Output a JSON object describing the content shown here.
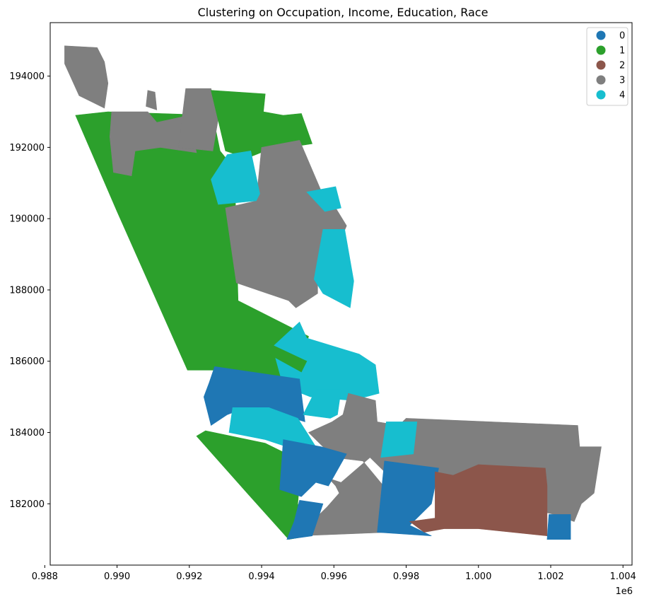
{
  "chart_data": {
    "type": "map",
    "title": "Clustering on Occupation, Income, Education, Race",
    "xlim": [
      988150,
      1004250
    ],
    "ylim": [
      180280,
      195500
    ],
    "x_tick_labels": [
      "0.988",
      "0.990",
      "0.992",
      "0.994",
      "0.996",
      "0.998",
      "1.000",
      "1.002",
      "1.004"
    ],
    "y_tick_labels": [
      "182000",
      "184000",
      "186000",
      "188000",
      "190000",
      "192000",
      "194000"
    ],
    "x_offset_label": "1e6",
    "legend": {
      "placement": "top-right",
      "entries": [
        {
          "label": "0",
          "color": "#1f77b4"
        },
        {
          "label": "1",
          "color": "#2ca02c"
        },
        {
          "label": "2",
          "color": "#8c564b"
        },
        {
          "label": "3",
          "color": "#7f7f7f"
        },
        {
          "label": "4",
          "color": "#17becf"
        }
      ]
    },
    "regions": [
      {
        "cluster": 1,
        "points": [
          [
            988850,
            192900
          ],
          [
            989750,
            193000
          ],
          [
            992650,
            192900
          ],
          [
            992850,
            191900
          ],
          [
            993250,
            191400
          ],
          [
            993350,
            187700
          ],
          [
            995300,
            186700
          ],
          [
            995000,
            185500
          ],
          [
            992700,
            185750
          ],
          [
            991950,
            185750
          ],
          [
            990000,
            190200
          ]
        ]
      },
      {
        "cluster": 3,
        "points": [
          [
            988550,
            194850
          ],
          [
            989450,
            194800
          ],
          [
            989650,
            194400
          ],
          [
            989750,
            193800
          ],
          [
            989650,
            193100
          ],
          [
            988950,
            193450
          ],
          [
            988550,
            194350
          ]
        ]
      },
      {
        "cluster": 3,
        "points": [
          [
            989850,
            193000
          ],
          [
            990850,
            193000
          ],
          [
            991100,
            192700
          ],
          [
            992000,
            192900
          ],
          [
            992100,
            192300
          ],
          [
            992200,
            191850
          ],
          [
            991200,
            192000
          ],
          [
            990500,
            191900
          ],
          [
            990400,
            191200
          ],
          [
            989900,
            191300
          ],
          [
            989800,
            192300
          ]
        ]
      },
      {
        "cluster": 3,
        "points": [
          [
            990800,
            193150
          ],
          [
            991100,
            193050
          ],
          [
            991050,
            193550
          ],
          [
            990850,
            193600
          ]
        ]
      },
      {
        "cluster": 3,
        "points": [
          [
            991900,
            193650
          ],
          [
            992600,
            193650
          ],
          [
            992800,
            192800
          ],
          [
            992650,
            191900
          ],
          [
            991700,
            192000
          ]
        ]
      },
      {
        "cluster": 1,
        "points": [
          [
            992600,
            193600
          ],
          [
            994100,
            193500
          ],
          [
            994050,
            193000
          ],
          [
            994600,
            192900
          ],
          [
            995100,
            192950
          ],
          [
            995400,
            192100
          ],
          [
            994100,
            191900
          ],
          [
            993600,
            191700
          ],
          [
            993000,
            191900
          ]
        ]
      },
      {
        "cluster": 3,
        "points": [
          [
            994000,
            192000
          ],
          [
            995050,
            192200
          ],
          [
            995850,
            190300
          ],
          [
            996050,
            190300
          ],
          [
            996350,
            189800
          ],
          [
            996100,
            189200
          ],
          [
            995700,
            189200
          ],
          [
            995550,
            188900
          ],
          [
            995550,
            187900
          ],
          [
            994950,
            187500
          ],
          [
            994750,
            187700
          ],
          [
            993300,
            188200
          ],
          [
            993000,
            190300
          ],
          [
            993850,
            190500
          ]
        ]
      },
      {
        "cluster": 4,
        "points": [
          [
            993050,
            191800
          ],
          [
            993700,
            191900
          ],
          [
            993950,
            190700
          ],
          [
            993850,
            190500
          ],
          [
            992800,
            190400
          ],
          [
            992600,
            191100
          ]
        ]
      },
      {
        "cluster": 4,
        "points": [
          [
            995250,
            190750
          ],
          [
            996050,
            190900
          ],
          [
            996200,
            190300
          ],
          [
            995750,
            190200
          ]
        ]
      },
      {
        "cluster": 4,
        "points": [
          [
            995700,
            189700
          ],
          [
            996300,
            189700
          ],
          [
            996550,
            188250
          ],
          [
            996450,
            187500
          ],
          [
            995700,
            187900
          ],
          [
            995450,
            188300
          ]
        ]
      },
      {
        "cluster": 4,
        "points": [
          [
            995050,
            187100
          ],
          [
            995250,
            186650
          ],
          [
            996700,
            186200
          ],
          [
            997150,
            185900
          ],
          [
            997250,
            185100
          ],
          [
            996500,
            184900
          ],
          [
            995350,
            185000
          ],
          [
            994600,
            185300
          ],
          [
            994300,
            186400
          ]
        ]
      },
      {
        "cluster": 1,
        "points": [
          [
            994200,
            186500
          ],
          [
            995250,
            186000
          ],
          [
            995100,
            185700
          ],
          [
            994200,
            186200
          ]
        ]
      },
      {
        "cluster": 0,
        "points": [
          [
            992700,
            185850
          ],
          [
            992550,
            185400
          ],
          [
            992400,
            185000
          ],
          [
            992600,
            184200
          ],
          [
            993050,
            184500
          ],
          [
            993300,
            184600
          ],
          [
            994550,
            184500
          ],
          [
            995200,
            184300
          ],
          [
            995050,
            185500
          ]
        ]
      },
      {
        "cluster": 4,
        "points": [
          [
            993200,
            184700
          ],
          [
            993100,
            184000
          ],
          [
            994100,
            183800
          ],
          [
            994700,
            183600
          ],
          [
            995300,
            183200
          ],
          [
            995500,
            183600
          ],
          [
            995000,
            184400
          ],
          [
            994200,
            184700
          ]
        ]
      },
      {
        "cluster": 4,
        "points": [
          [
            995150,
            184500
          ],
          [
            995900,
            184400
          ],
          [
            996100,
            184500
          ],
          [
            996200,
            185200
          ],
          [
            995500,
            185200
          ]
        ]
      },
      {
        "cluster": 1,
        "points": [
          [
            992450,
            184050
          ],
          [
            994100,
            183700
          ],
          [
            995100,
            183200
          ],
          [
            995000,
            182000
          ],
          [
            995300,
            181100
          ],
          [
            994750,
            181000
          ],
          [
            993600,
            182300
          ],
          [
            992200,
            183900
          ]
        ]
      },
      {
        "cluster": 3,
        "points": [
          [
            995300,
            184000
          ],
          [
            995950,
            184300
          ],
          [
            996250,
            184500
          ],
          [
            996400,
            185100
          ],
          [
            997150,
            184900
          ],
          [
            997200,
            184300
          ],
          [
            997800,
            184200
          ],
          [
            998000,
            184400
          ],
          [
            1002750,
            184200
          ],
          [
            1002800,
            183600
          ],
          [
            1003400,
            183600
          ],
          [
            1003200,
            182300
          ],
          [
            1002850,
            182000
          ],
          [
            1002650,
            181500
          ],
          [
            1002100,
            181700
          ],
          [
            997500,
            182800
          ],
          [
            997000,
            183300
          ],
          [
            996200,
            182600
          ],
          [
            995600,
            182800
          ],
          [
            995050,
            182700
          ],
          [
            995600,
            183000
          ],
          [
            996050,
            182500
          ],
          [
            996150,
            182300
          ],
          [
            995800,
            181900
          ],
          [
            995600,
            181700
          ],
          [
            995300,
            181200
          ],
          [
            995000,
            181100
          ],
          [
            997500,
            181200
          ],
          [
            997700,
            182100
          ],
          [
            996800,
            183200
          ],
          [
            996000,
            183300
          ]
        ]
      },
      {
        "cluster": 0,
        "points": [
          [
            994600,
            183800
          ],
          [
            995650,
            183600
          ],
          [
            996350,
            183400
          ],
          [
            995850,
            182500
          ],
          [
            995500,
            182600
          ],
          [
            995100,
            182200
          ],
          [
            994500,
            182400
          ]
        ]
      },
      {
        "cluster": 0,
        "points": [
          [
            995050,
            182100
          ],
          [
            995700,
            182000
          ],
          [
            995400,
            181100
          ],
          [
            994700,
            181000
          ],
          [
            994900,
            181500
          ]
        ]
      },
      {
        "cluster": 0,
        "points": [
          [
            997400,
            183200
          ],
          [
            998900,
            183000
          ],
          [
            998700,
            182000
          ],
          [
            998100,
            181400
          ],
          [
            998700,
            181100
          ],
          [
            997200,
            181200
          ],
          [
            997300,
            182200
          ]
        ]
      },
      {
        "cluster": 4,
        "points": [
          [
            997450,
            184300
          ],
          [
            998300,
            184300
          ],
          [
            998200,
            183400
          ],
          [
            997300,
            183300
          ]
        ]
      },
      {
        "cluster": 2,
        "points": [
          [
            998800,
            182900
          ],
          [
            999300,
            182800
          ],
          [
            1000000,
            183100
          ],
          [
            1001850,
            183000
          ],
          [
            1001900,
            182500
          ],
          [
            1001900,
            181100
          ],
          [
            1000000,
            181300
          ],
          [
            999050,
            181300
          ],
          [
            998500,
            181200
          ],
          [
            998100,
            181500
          ],
          [
            998800,
            181600
          ]
        ]
      },
      {
        "cluster": 0,
        "points": [
          [
            1001950,
            181700
          ],
          [
            1002550,
            181700
          ],
          [
            1002550,
            181000
          ],
          [
            1001900,
            181000
          ]
        ]
      }
    ]
  }
}
